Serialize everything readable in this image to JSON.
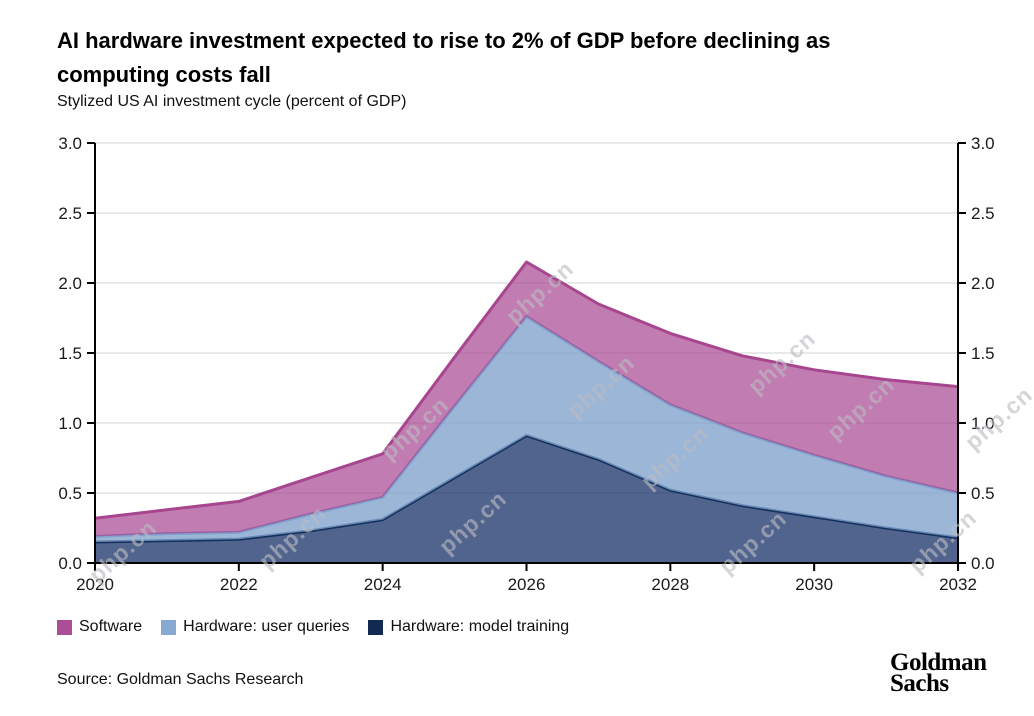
{
  "header": {
    "title_lines": [
      "AI hardware investment expected to rise to 2% of GDP before declining as",
      "computing costs fall"
    ],
    "subtitle": "Stylized US AI investment cycle (percent of GDP)"
  },
  "legend": {
    "items": [
      {
        "label": "Software",
        "color": "#ab4d97"
      },
      {
        "label": "Hardware: user queries",
        "color": "#87a9d2"
      },
      {
        "label": "Hardware: model training",
        "color": "#122a52"
      }
    ]
  },
  "footer": {
    "source": "Source: Goldman Sachs Research",
    "logo_lines": [
      "Goldman",
      "Sachs"
    ]
  },
  "watermark": {
    "text": "php.cn"
  },
  "chart_data": {
    "type": "area",
    "stacked": true,
    "title": "Stylized US AI investment cycle (percent of GDP)",
    "xlabel": "",
    "ylabel": "",
    "x": [
      2020,
      2021,
      2022,
      2023,
      2024,
      2025,
      2026,
      2027,
      2028,
      2029,
      2030,
      2031,
      2032
    ],
    "xticks": [
      2020,
      2022,
      2024,
      2026,
      2028,
      2030,
      2032
    ],
    "yticks": [
      0.0,
      0.5,
      1.0,
      1.5,
      2.0,
      2.5,
      3.0
    ],
    "ylim": [
      0,
      3
    ],
    "grid": true,
    "legend_position": "bottom",
    "series": [
      {
        "name": "Hardware: model training",
        "values": [
          0.15,
          0.16,
          0.17,
          0.23,
          0.31,
          0.61,
          0.91,
          0.74,
          0.52,
          0.41,
          0.33,
          0.25,
          0.18
        ],
        "line": "#14305c",
        "fill": "rgba(16,42,100,0.73)"
      },
      {
        "name": "Hardware: user queries",
        "values": [
          0.04,
          0.05,
          0.05,
          0.12,
          0.16,
          0.51,
          0.85,
          0.7,
          0.61,
          0.52,
          0.44,
          0.37,
          0.32
        ],
        "line": "#7fa1cc",
        "fill": "rgba(127,161,204,0.78)"
      },
      {
        "name": "Software",
        "values": [
          0.13,
          0.17,
          0.22,
          0.26,
          0.31,
          0.35,
          0.39,
          0.41,
          0.51,
          0.55,
          0.61,
          0.69,
          0.76
        ],
        "line": "#a7468f",
        "fill": "rgba(167,70,145,0.70)"
      }
    ]
  }
}
